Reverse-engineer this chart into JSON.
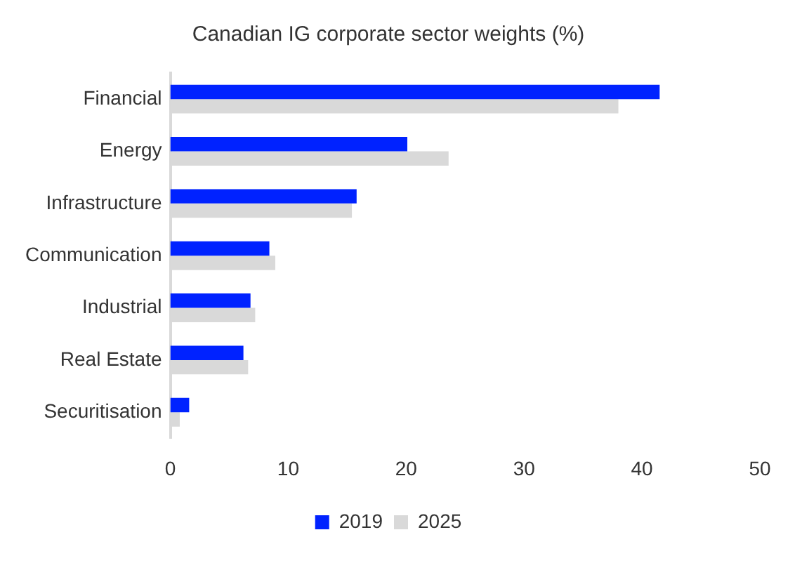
{
  "chart_data": {
    "type": "bar",
    "orientation": "horizontal",
    "title": "Canadian IG corporate sector weights (%)",
    "categories": [
      "Financial",
      "Energy",
      "Infrastructure",
      "Communication",
      "Industrial",
      "Real Estate",
      "Securitisation"
    ],
    "series": [
      {
        "name": "2019",
        "color": "#0022ff",
        "values": [
          41.5,
          20.1,
          15.8,
          8.4,
          6.8,
          6.2,
          1.6
        ]
      },
      {
        "name": "2025",
        "color": "#d9d9d9",
        "values": [
          38.0,
          23.6,
          15.4,
          8.9,
          7.2,
          6.6,
          0.8
        ]
      }
    ],
    "xlim": [
      0,
      50
    ],
    "xticks": [
      0,
      10,
      20,
      30,
      40,
      50
    ],
    "grid": false,
    "legend": "bottom"
  }
}
